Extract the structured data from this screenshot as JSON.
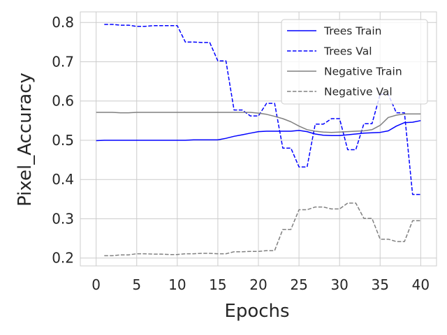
{
  "chart_data": {
    "type": "line",
    "title": "",
    "xlabel": "Epochs",
    "ylabel": "Pixel_Accuracy",
    "xlim": [
      -1.95,
      41.95
    ],
    "ylim": [
      0.18,
      0.827
    ],
    "xticks": [
      0,
      5,
      10,
      15,
      20,
      25,
      30,
      35,
      40
    ],
    "yticks": [
      0.2,
      0.3,
      0.4,
      0.5,
      0.6,
      0.7,
      0.8
    ],
    "grid": true,
    "legend_position": "top-right",
    "series": [
      {
        "name": "Trees Train",
        "color": "#0000ff",
        "dash": "solid",
        "x": [
          0,
          1,
          2,
          3,
          4,
          5,
          6,
          7,
          8,
          9,
          10,
          11,
          12,
          13,
          14,
          15,
          16,
          17,
          18,
          19,
          20,
          21,
          22,
          23,
          24,
          25,
          26,
          27,
          28,
          29,
          30,
          31,
          32,
          33,
          34,
          35,
          36,
          37,
          38,
          39,
          40
        ],
        "y": [
          0.499,
          0.5,
          0.5,
          0.5,
          0.5,
          0.5,
          0.5,
          0.5,
          0.5,
          0.5,
          0.5,
          0.5,
          0.501,
          0.501,
          0.501,
          0.501,
          0.505,
          0.51,
          0.514,
          0.518,
          0.522,
          0.523,
          0.523,
          0.523,
          0.523,
          0.525,
          0.522,
          0.516,
          0.513,
          0.512,
          0.512,
          0.514,
          0.516,
          0.518,
          0.519,
          0.52,
          0.524,
          0.536,
          0.545,
          0.546,
          0.55
        ]
      },
      {
        "name": "Trees Val",
        "color": "#0000ff",
        "dash": "dashed",
        "x": [
          1,
          2,
          3,
          4,
          5,
          6,
          7,
          8,
          9,
          10,
          11,
          12,
          13,
          14,
          15,
          16,
          17,
          18,
          19,
          20,
          21,
          22,
          23,
          24,
          25,
          26,
          27,
          28,
          29,
          30,
          31,
          32,
          33,
          34,
          35,
          36,
          37,
          38,
          39,
          40
        ],
        "y": [
          0.795,
          0.795,
          0.793,
          0.793,
          0.79,
          0.79,
          0.792,
          0.792,
          0.792,
          0.792,
          0.75,
          0.75,
          0.749,
          0.749,
          0.702,
          0.702,
          0.577,
          0.577,
          0.562,
          0.562,
          0.594,
          0.594,
          0.48,
          0.48,
          0.432,
          0.432,
          0.541,
          0.541,
          0.555,
          0.555,
          0.476,
          0.476,
          0.542,
          0.542,
          0.617,
          0.617,
          0.57,
          0.57,
          0.362,
          0.362
        ]
      },
      {
        "name": "Negative Train",
        "color": "#808080",
        "dash": "solid",
        "x": [
          0,
          1,
          2,
          3,
          4,
          5,
          6,
          7,
          8,
          9,
          10,
          11,
          12,
          13,
          14,
          15,
          16,
          17,
          18,
          19,
          20,
          21,
          22,
          23,
          24,
          25,
          26,
          27,
          28,
          29,
          30,
          31,
          32,
          33,
          34,
          35,
          36,
          37,
          38,
          39,
          40
        ],
        "y": [
          0.571,
          0.571,
          0.571,
          0.57,
          0.57,
          0.571,
          0.571,
          0.571,
          0.571,
          0.571,
          0.571,
          0.571,
          0.571,
          0.571,
          0.571,
          0.571,
          0.571,
          0.571,
          0.571,
          0.571,
          0.569,
          0.566,
          0.561,
          0.555,
          0.547,
          0.536,
          0.527,
          0.523,
          0.521,
          0.52,
          0.521,
          0.522,
          0.523,
          0.524,
          0.527,
          0.538,
          0.558,
          0.564,
          0.567,
          0.567,
          0.567
        ]
      },
      {
        "name": "Negative Val",
        "color": "#808080",
        "dash": "dashed",
        "x": [
          1,
          2,
          3,
          4,
          5,
          6,
          7,
          8,
          9,
          10,
          11,
          12,
          13,
          14,
          15,
          16,
          17,
          18,
          19,
          20,
          21,
          22,
          23,
          24,
          25,
          26,
          27,
          28,
          29,
          30,
          31,
          32,
          33,
          34,
          35,
          36,
          37,
          38,
          39,
          40
        ],
        "y": [
          0.206,
          0.206,
          0.208,
          0.208,
          0.211,
          0.211,
          0.21,
          0.21,
          0.209,
          0.209,
          0.211,
          0.211,
          0.212,
          0.212,
          0.211,
          0.211,
          0.216,
          0.216,
          0.217,
          0.217,
          0.219,
          0.219,
          0.273,
          0.273,
          0.323,
          0.323,
          0.33,
          0.33,
          0.325,
          0.325,
          0.34,
          0.34,
          0.301,
          0.301,
          0.248,
          0.248,
          0.242,
          0.242,
          0.295,
          0.295
        ]
      }
    ]
  }
}
